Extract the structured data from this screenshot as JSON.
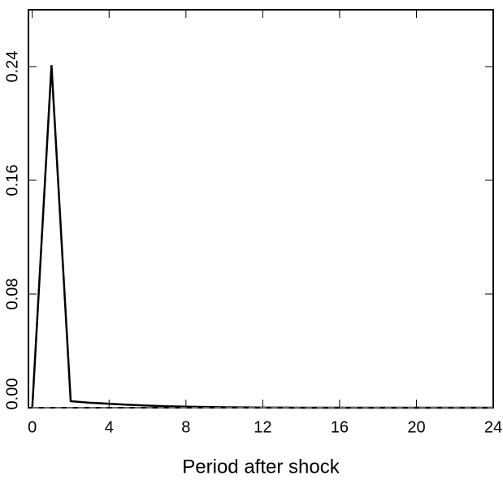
{
  "chart_data": {
    "type": "line",
    "xlabel": "Period after shock",
    "x": [
      0,
      1,
      2,
      3,
      4,
      5,
      6,
      7,
      8,
      9,
      10,
      11,
      12,
      13,
      14,
      15,
      16,
      17,
      18,
      19,
      20,
      21,
      22,
      23,
      24
    ],
    "series": [
      {
        "color": "#000000",
        "values": [
          0,
          0.241,
          0.0046,
          0.0035,
          0.0028,
          0.0021,
          0.0015,
          0.001,
          0.0007,
          0.0005,
          0.0003,
          0.0002,
          0.0001,
          0.0001,
          0,
          0,
          0,
          0,
          0,
          0,
          0,
          0,
          0,
          0,
          0
        ]
      },
      {
        "color": "#888888",
        "dashed": true,
        "values": [
          0,
          0,
          0,
          0,
          0,
          0,
          0,
          0,
          0,
          0,
          0,
          0,
          0,
          0,
          0,
          0,
          0,
          0,
          0,
          0,
          0,
          0,
          0,
          0,
          0
        ]
      }
    ],
    "xlim": [
      -0.2,
      24
    ],
    "ylim": [
      0,
      0.28
    ],
    "xticks": [
      0,
      4,
      8,
      12,
      16,
      20,
      24
    ],
    "yticks": [
      {
        "value": 0,
        "label": "0.00"
      },
      {
        "value": 0.08,
        "label": "0.08"
      },
      {
        "value": 0.16,
        "label": "0.16"
      },
      {
        "value": 0.24,
        "label": "0.24"
      }
    ]
  }
}
